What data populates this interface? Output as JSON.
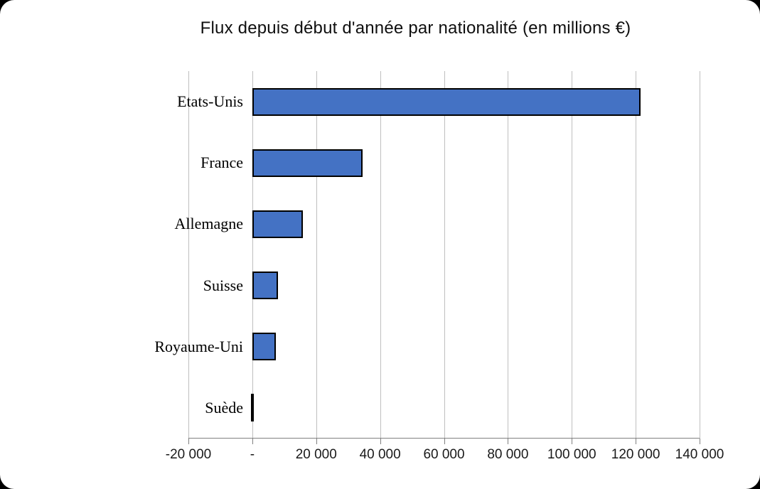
{
  "chart_data": {
    "type": "bar",
    "orientation": "horizontal",
    "title": "Flux depuis début d'année par nationalité (en millions €)",
    "categories": [
      "Etats-Unis",
      "France",
      "Allemagne",
      "Suisse",
      "Royaume-Uni",
      "Suède"
    ],
    "values": [
      121500,
      34500,
      15800,
      8000,
      7400,
      -500
    ],
    "xlabel": "",
    "ylabel": "",
    "xlim": [
      -20000,
      140000
    ],
    "xticks": [
      {
        "value": -20000,
        "label": "-20 000"
      },
      {
        "value": 0,
        "label": "-"
      },
      {
        "value": 20000,
        "label": "20 000"
      },
      {
        "value": 40000,
        "label": "40 000"
      },
      {
        "value": 60000,
        "label": "60 000"
      },
      {
        "value": 80000,
        "label": "80 000"
      },
      {
        "value": 100000,
        "label": "100 000"
      },
      {
        "value": 120000,
        "label": "120 000"
      },
      {
        "value": 140000,
        "label": "140 000"
      }
    ],
    "grid": true,
    "legend": "none",
    "colors": {
      "bar_fill": "#4472C4",
      "bar_border": "#000000",
      "gridline": "#BFBFBF",
      "axis_line": "#808080",
      "text": "#000000"
    }
  }
}
